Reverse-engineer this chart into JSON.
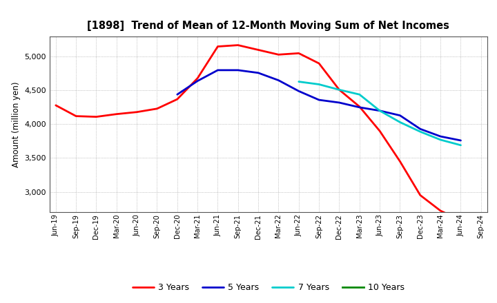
{
  "title": "[1898]  Trend of Mean of 12-Month Moving Sum of Net Incomes",
  "ylabel": "Amount (million yen)",
  "background_color": "#ffffff",
  "plot_bg_color": "#ffffff",
  "grid_color": "#999999",
  "ylim": [
    2700,
    5300
  ],
  "yticks": [
    3000,
    3500,
    4000,
    4500,
    5000
  ],
  "x_labels": [
    "Jun-19",
    "Sep-19",
    "Dec-19",
    "Mar-20",
    "Jun-20",
    "Sep-20",
    "Dec-20",
    "Mar-21",
    "Jun-21",
    "Sep-21",
    "Dec-21",
    "Mar-22",
    "Jun-22",
    "Sep-22",
    "Dec-22",
    "Mar-23",
    "Jun-23",
    "Sep-23",
    "Dec-23",
    "Mar-24",
    "Jun-24",
    "Sep-24"
  ],
  "series": {
    "3 Years": {
      "color": "#ff0000",
      "linewidth": 2.0,
      "data": [
        4280,
        4120,
        4110,
        4150,
        4180,
        4230,
        4370,
        4680,
        5150,
        5170,
        5100,
        5030,
        5050,
        4900,
        4510,
        4260,
        3900,
        3450,
        2950,
        2720,
        2580,
        null
      ]
    },
    "5 Years": {
      "color": "#0000cc",
      "linewidth": 2.0,
      "data": [
        null,
        null,
        null,
        null,
        null,
        null,
        4440,
        4640,
        4800,
        4800,
        4760,
        4650,
        4490,
        4360,
        4320,
        4250,
        4200,
        4130,
        3930,
        3820,
        3760,
        null
      ]
    },
    "7 Years": {
      "color": "#00cccc",
      "linewidth": 2.0,
      "data": [
        null,
        null,
        null,
        null,
        null,
        null,
        null,
        null,
        null,
        null,
        null,
        null,
        4630,
        4590,
        4510,
        4440,
        4200,
        4030,
        3890,
        3770,
        3690,
        null
      ]
    },
    "10 Years": {
      "color": "#008800",
      "linewidth": 2.0,
      "data": [
        null,
        null,
        null,
        null,
        null,
        null,
        null,
        null,
        null,
        null,
        null,
        null,
        null,
        null,
        null,
        null,
        null,
        null,
        null,
        null,
        null,
        null
      ]
    }
  }
}
